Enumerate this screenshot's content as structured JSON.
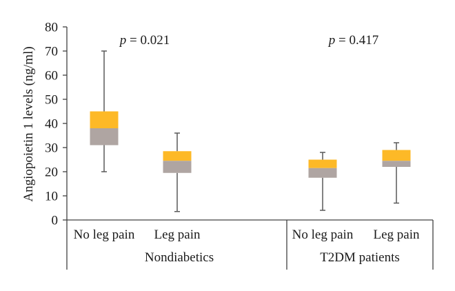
{
  "chart_data": {
    "type": "boxplot",
    "ylabel": "Angiopoietin 1 levels (ng/ml)",
    "ylim": [
      0,
      80
    ],
    "yticks": [
      0,
      10,
      20,
      30,
      40,
      50,
      60,
      70,
      80
    ],
    "grid": false,
    "colors": {
      "upper_box": "#FDB927",
      "lower_box": "#AFA5A2",
      "whisker": "#595959",
      "axis": "#404040"
    },
    "groups": [
      {
        "name": "Nondiabetics",
        "p_label": "p = 0.021",
        "p_prefix": "p",
        "p_rest": " = 0.021",
        "categories": [
          {
            "label": "No leg pain",
            "min": 20,
            "q1": 31,
            "median": 38,
            "q3": 45,
            "max": 70
          },
          {
            "label": "Leg pain",
            "min": 3.5,
            "q1": 19.5,
            "median": 24.5,
            "q3": 28.5,
            "max": 36
          }
        ]
      },
      {
        "name": "T2DM patients",
        "p_label": "p = 0.417",
        "p_prefix": "p",
        "p_rest": " = 0.417",
        "categories": [
          {
            "label": "No leg pain",
            "min": 4,
            "q1": 17.5,
            "median": 21.5,
            "q3": 25,
            "max": 28
          },
          {
            "label": "Leg pain",
            "min": 7,
            "q1": 22,
            "median": 24.5,
            "q3": 29,
            "max": 32
          }
        ]
      }
    ]
  }
}
